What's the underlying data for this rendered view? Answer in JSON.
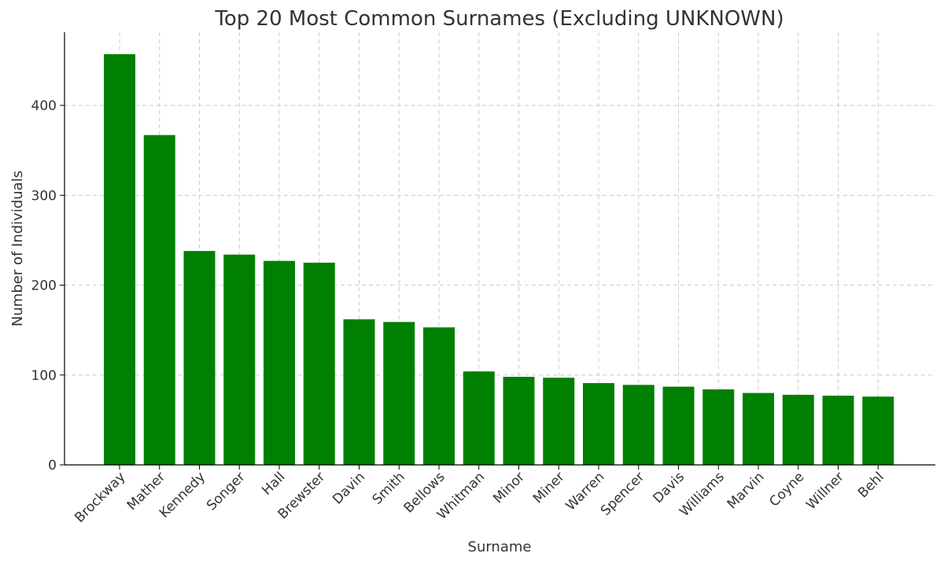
{
  "chart_data": {
    "type": "bar",
    "title": "Top 20 Most Common Surnames (Excluding UNKNOWN)",
    "xlabel": "Surname",
    "ylabel": "Number of Individuals",
    "categories": [
      "Brockway",
      "Mather",
      "Kennedy",
      "Songer",
      "Hall",
      "Brewster",
      "Davin",
      "Smith",
      "Bellows",
      "Whitman",
      "Minor",
      "Miner",
      "Warren",
      "Spencer",
      "Davis",
      "Williams",
      "Marvin",
      "Coyne",
      "Willner",
      "Behl"
    ],
    "values": [
      457,
      367,
      238,
      234,
      227,
      225,
      162,
      159,
      153,
      104,
      98,
      97,
      91,
      89,
      87,
      84,
      80,
      78,
      77,
      76
    ],
    "yticks": [
      0,
      100,
      200,
      300,
      400
    ],
    "ylim": [
      0,
      480
    ],
    "grid": true,
    "bar_color": "#008000"
  }
}
